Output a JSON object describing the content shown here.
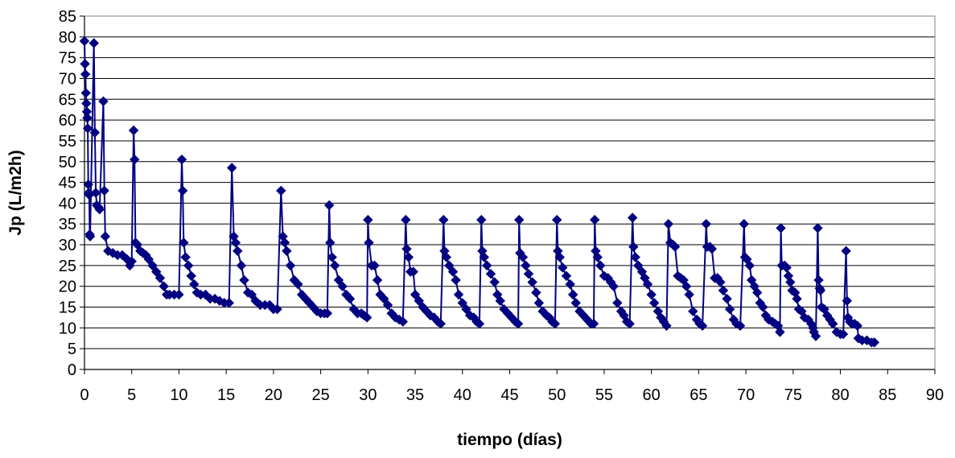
{
  "chart_data": {
    "type": "line",
    "xlabel": "tiempo (días)",
    "ylabel": "Jp (L/m2h)",
    "xlim": [
      0,
      90
    ],
    "ylim": [
      0,
      85
    ],
    "xticks": [
      0,
      5,
      10,
      15,
      20,
      25,
      30,
      35,
      40,
      45,
      50,
      55,
      60,
      65,
      70,
      75,
      80,
      85,
      90
    ],
    "yticks": [
      0,
      5,
      10,
      15,
      20,
      25,
      30,
      35,
      40,
      45,
      50,
      55,
      60,
      65,
      70,
      75,
      80,
      85
    ],
    "grid": "horizontal",
    "legend": "none",
    "marker": "diamond",
    "series_color": "#000080",
    "series": [
      {
        "points": [
          [
            0.0,
            79.0
          ],
          [
            0.05,
            73.5
          ],
          [
            0.1,
            71.0
          ],
          [
            0.15,
            66.5
          ],
          [
            0.2,
            64.0
          ],
          [
            0.25,
            62.0
          ],
          [
            0.3,
            60.5
          ],
          [
            0.35,
            58.0
          ],
          [
            0.4,
            44.5
          ],
          [
            0.45,
            42.5
          ],
          [
            0.5,
            42.0
          ],
          [
            0.55,
            32.5
          ],
          [
            0.6,
            32.0
          ],
          [
            1.0,
            78.5
          ],
          [
            1.1,
            57.0
          ],
          [
            1.2,
            42.5
          ],
          [
            1.3,
            39.5
          ],
          [
            1.5,
            39.0
          ],
          [
            1.6,
            38.5
          ],
          [
            2.0,
            64.5
          ],
          [
            2.1,
            43.0
          ],
          [
            2.2,
            32.0
          ],
          [
            2.5,
            28.5
          ],
          [
            3.0,
            28.0
          ],
          [
            3.5,
            27.5
          ],
          [
            4.0,
            27.5
          ],
          [
            4.5,
            26.5
          ],
          [
            4.8,
            25.0
          ],
          [
            5.0,
            26.0
          ],
          [
            5.2,
            57.5
          ],
          [
            5.3,
            50.5
          ],
          [
            5.4,
            30.5
          ],
          [
            5.6,
            30.0
          ],
          [
            5.9,
            28.5
          ],
          [
            6.2,
            28.0
          ],
          [
            6.5,
            27.5
          ],
          [
            6.8,
            26.5
          ],
          [
            7.2,
            25.0
          ],
          [
            7.6,
            23.5
          ],
          [
            8.0,
            22.0
          ],
          [
            8.4,
            20.0
          ],
          [
            8.7,
            18.0
          ],
          [
            9.0,
            18.0
          ],
          [
            9.5,
            18.0
          ],
          [
            10.0,
            18.0
          ],
          [
            10.3,
            50.5
          ],
          [
            10.4,
            43.0
          ],
          [
            10.5,
            30.5
          ],
          [
            10.7,
            27.0
          ],
          [
            11.0,
            25.0
          ],
          [
            11.3,
            22.5
          ],
          [
            11.6,
            20.5
          ],
          [
            11.9,
            18.5
          ],
          [
            12.3,
            18.0
          ],
          [
            12.8,
            18.0
          ],
          [
            13.3,
            17.0
          ],
          [
            13.8,
            17.0
          ],
          [
            14.3,
            16.5
          ],
          [
            14.8,
            16.0
          ],
          [
            15.3,
            16.0
          ],
          [
            15.6,
            48.5
          ],
          [
            15.8,
            32.0
          ],
          [
            16.0,
            30.5
          ],
          [
            16.2,
            28.5
          ],
          [
            16.6,
            25.0
          ],
          [
            16.9,
            21.5
          ],
          [
            17.3,
            18.5
          ],
          [
            17.7,
            18.0
          ],
          [
            18.1,
            16.5
          ],
          [
            18.6,
            15.5
          ],
          [
            19.1,
            15.5
          ],
          [
            19.6,
            15.5
          ],
          [
            20.0,
            14.5
          ],
          [
            20.4,
            14.5
          ],
          [
            20.8,
            43.0
          ],
          [
            21.0,
            32.0
          ],
          [
            21.2,
            30.5
          ],
          [
            21.4,
            28.5
          ],
          [
            21.8,
            25.0
          ],
          [
            22.2,
            21.5
          ],
          [
            22.6,
            20.5
          ],
          [
            23.0,
            18.0
          ],
          [
            23.4,
            17.0
          ],
          [
            23.8,
            16.0
          ],
          [
            24.2,
            15.0
          ],
          [
            24.6,
            14.0
          ],
          [
            25.0,
            13.5
          ],
          [
            25.4,
            13.5
          ],
          [
            25.7,
            13.5
          ],
          [
            25.9,
            39.5
          ],
          [
            26.0,
            30.5
          ],
          [
            26.2,
            27.0
          ],
          [
            26.5,
            25.0
          ],
          [
            26.9,
            21.5
          ],
          [
            27.3,
            20.0
          ],
          [
            27.7,
            18.0
          ],
          [
            28.1,
            17.0
          ],
          [
            28.5,
            14.5
          ],
          [
            28.9,
            13.5
          ],
          [
            29.3,
            13.5
          ],
          [
            29.6,
            13.0
          ],
          [
            29.9,
            12.5
          ],
          [
            30.0,
            36.0
          ],
          [
            30.1,
            30.5
          ],
          [
            30.4,
            25.0
          ],
          [
            30.7,
            25.0
          ],
          [
            31.0,
            21.5
          ],
          [
            31.3,
            18.0
          ],
          [
            31.7,
            17.0
          ],
          [
            32.1,
            15.5
          ],
          [
            32.5,
            13.5
          ],
          [
            32.9,
            12.5
          ],
          [
            33.3,
            12.0
          ],
          [
            33.7,
            11.5
          ],
          [
            34.0,
            36.0
          ],
          [
            34.1,
            29.0
          ],
          [
            34.3,
            27.0
          ],
          [
            34.5,
            23.5
          ],
          [
            34.8,
            23.5
          ],
          [
            35.0,
            18.0
          ],
          [
            35.4,
            16.5
          ],
          [
            35.8,
            15.0
          ],
          [
            36.2,
            14.0
          ],
          [
            36.6,
            13.0
          ],
          [
            37.0,
            12.5
          ],
          [
            37.4,
            11.5
          ],
          [
            37.7,
            11.0
          ],
          [
            38.0,
            36.0
          ],
          [
            38.1,
            28.5
          ],
          [
            38.3,
            27.0
          ],
          [
            38.6,
            25.0
          ],
          [
            39.0,
            23.5
          ],
          [
            39.3,
            21.5
          ],
          [
            39.6,
            18.0
          ],
          [
            40.0,
            16.0
          ],
          [
            40.4,
            14.5
          ],
          [
            40.8,
            13.0
          ],
          [
            41.2,
            12.5
          ],
          [
            41.5,
            11.5
          ],
          [
            41.8,
            11.0
          ],
          [
            42.0,
            36.0
          ],
          [
            42.1,
            28.5
          ],
          [
            42.3,
            27.0
          ],
          [
            42.6,
            25.0
          ],
          [
            43.0,
            23.0
          ],
          [
            43.4,
            21.0
          ],
          [
            43.7,
            18.0
          ],
          [
            44.0,
            16.5
          ],
          [
            44.4,
            14.5
          ],
          [
            44.8,
            13.5
          ],
          [
            45.2,
            12.5
          ],
          [
            45.6,
            11.5
          ],
          [
            45.9,
            11.0
          ],
          [
            46.0,
            36.0
          ],
          [
            46.1,
            28.0
          ],
          [
            46.4,
            27.0
          ],
          [
            46.7,
            25.0
          ],
          [
            47.0,
            23.0
          ],
          [
            47.4,
            21.0
          ],
          [
            47.8,
            18.5
          ],
          [
            48.1,
            16.0
          ],
          [
            48.5,
            14.0
          ],
          [
            48.9,
            13.0
          ],
          [
            49.2,
            12.5
          ],
          [
            49.5,
            11.5
          ],
          [
            49.8,
            11.0
          ],
          [
            50.0,
            36.0
          ],
          [
            50.1,
            28.5
          ],
          [
            50.3,
            27.0
          ],
          [
            50.6,
            24.5
          ],
          [
            51.0,
            22.5
          ],
          [
            51.4,
            20.5
          ],
          [
            51.7,
            18.0
          ],
          [
            52.0,
            16.0
          ],
          [
            52.4,
            14.0
          ],
          [
            52.8,
            13.0
          ],
          [
            53.2,
            12.0
          ],
          [
            53.6,
            11.0
          ],
          [
            53.9,
            11.0
          ],
          [
            54.0,
            36.0
          ],
          [
            54.1,
            28.5
          ],
          [
            54.3,
            27.0
          ],
          [
            54.6,
            25.0
          ],
          [
            55.0,
            22.5
          ],
          [
            55.4,
            22.0
          ],
          [
            55.7,
            21.0
          ],
          [
            56.0,
            20.0
          ],
          [
            56.4,
            16.0
          ],
          [
            56.8,
            14.0
          ],
          [
            57.1,
            13.0
          ],
          [
            57.4,
            11.5
          ],
          [
            57.7,
            11.0
          ],
          [
            58.0,
            36.5
          ],
          [
            58.1,
            29.5
          ],
          [
            58.3,
            27.0
          ],
          [
            58.6,
            25.0
          ],
          [
            59.0,
            23.5
          ],
          [
            59.3,
            22.0
          ],
          [
            59.6,
            20.5
          ],
          [
            60.0,
            18.0
          ],
          [
            60.3,
            16.0
          ],
          [
            60.7,
            14.0
          ],
          [
            61.0,
            12.5
          ],
          [
            61.3,
            11.5
          ],
          [
            61.6,
            10.5
          ],
          [
            61.8,
            35.0
          ],
          [
            62.0,
            30.5
          ],
          [
            62.3,
            30.0
          ],
          [
            62.5,
            29.5
          ],
          [
            62.8,
            22.5
          ],
          [
            63.1,
            22.0
          ],
          [
            63.4,
            21.5
          ],
          [
            63.7,
            20.0
          ],
          [
            64.0,
            18.0
          ],
          [
            64.4,
            14.0
          ],
          [
            64.8,
            12.0
          ],
          [
            65.1,
            11.0
          ],
          [
            65.4,
            10.5
          ],
          [
            65.8,
            35.0
          ],
          [
            65.9,
            29.5
          ],
          [
            66.2,
            29.5
          ],
          [
            66.4,
            29.0
          ],
          [
            66.7,
            22.0
          ],
          [
            67.0,
            22.0
          ],
          [
            67.3,
            21.0
          ],
          [
            67.6,
            19.0
          ],
          [
            68.0,
            17.0
          ],
          [
            68.3,
            14.5
          ],
          [
            68.7,
            12.0
          ],
          [
            69.0,
            11.0
          ],
          [
            69.4,
            10.5
          ],
          [
            69.8,
            35.0
          ],
          [
            69.9,
            27.0
          ],
          [
            70.1,
            26.5
          ],
          [
            70.4,
            25.0
          ],
          [
            70.6,
            21.5
          ],
          [
            70.9,
            20.0
          ],
          [
            71.2,
            18.5
          ],
          [
            71.5,
            16.0
          ],
          [
            71.8,
            15.0
          ],
          [
            72.1,
            13.0
          ],
          [
            72.4,
            12.0
          ],
          [
            72.8,
            11.5
          ],
          [
            73.1,
            11.0
          ],
          [
            73.4,
            10.5
          ],
          [
            73.6,
            9.0
          ],
          [
            73.7,
            34.0
          ],
          [
            73.8,
            25.0
          ],
          [
            74.1,
            25.0
          ],
          [
            74.3,
            24.5
          ],
          [
            74.5,
            22.5
          ],
          [
            74.7,
            21.0
          ],
          [
            74.9,
            19.0
          ],
          [
            75.2,
            18.5
          ],
          [
            75.4,
            17.0
          ],
          [
            75.6,
            14.5
          ],
          [
            75.9,
            14.0
          ],
          [
            76.2,
            12.5
          ],
          [
            76.6,
            12.0
          ],
          [
            76.9,
            11.0
          ],
          [
            77.1,
            10.0
          ],
          [
            77.2,
            9.0
          ],
          [
            77.4,
            8.0
          ],
          [
            77.6,
            34.0
          ],
          [
            77.7,
            21.5
          ],
          [
            77.8,
            19.5
          ],
          [
            77.9,
            19.0
          ],
          [
            78.0,
            15.0
          ],
          [
            78.3,
            14.5
          ],
          [
            78.6,
            13.0
          ],
          [
            78.9,
            12.0
          ],
          [
            79.2,
            11.0
          ],
          [
            79.6,
            9.0
          ],
          [
            80.0,
            8.5
          ],
          [
            80.3,
            8.5
          ],
          [
            80.6,
            28.5
          ],
          [
            80.7,
            16.5
          ],
          [
            80.8,
            12.5
          ],
          [
            81.0,
            11.5
          ],
          [
            81.2,
            11.0
          ],
          [
            81.5,
            11.0
          ],
          [
            81.8,
            10.5
          ],
          [
            81.9,
            7.5
          ],
          [
            82.3,
            7.0
          ],
          [
            82.8,
            7.0
          ],
          [
            83.3,
            6.5
          ],
          [
            83.6,
            6.5
          ]
        ]
      }
    ]
  }
}
